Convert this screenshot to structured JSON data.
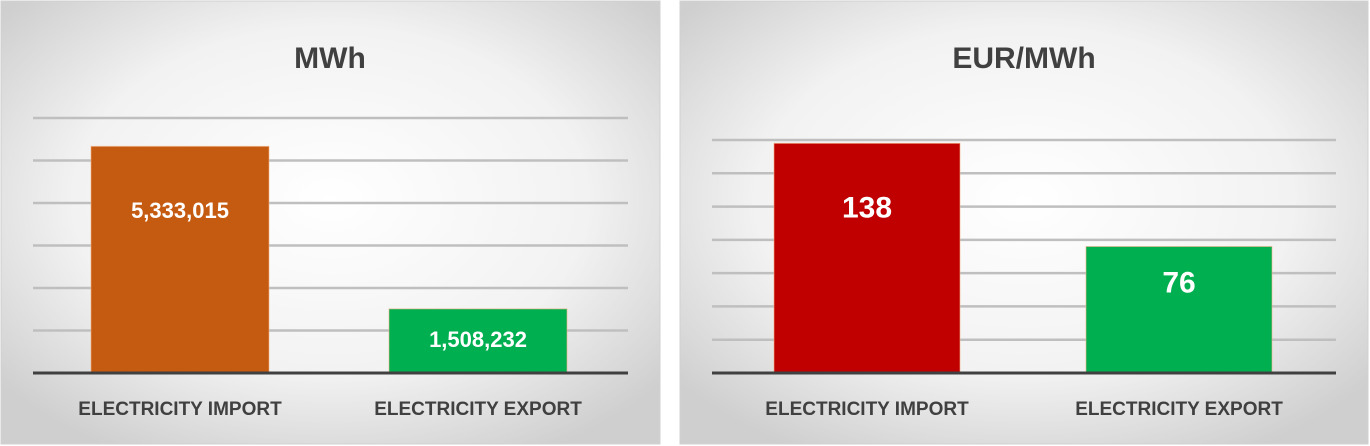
{
  "chart_data": [
    {
      "type": "bar",
      "title": "MWh",
      "categories": [
        "ELECTRICITY IMPORT",
        "ELECTRICITY EXPORT"
      ],
      "values": [
        5333015,
        1508232
      ],
      "value_labels": [
        "5,333,015",
        "1,508,232"
      ],
      "colors": [
        "#c55a11",
        "#00b050"
      ],
      "ylim": [
        0,
        6000000
      ],
      "yticks": [
        0,
        1000000,
        2000000,
        3000000,
        4000000,
        5000000,
        6000000
      ],
      "grid": true
    },
    {
      "type": "bar",
      "title": "EUR/MWh",
      "categories": [
        "ELECTRICITY IMPORT",
        "ELECTRICITY EXPORT"
      ],
      "values": [
        138,
        76
      ],
      "colors": [
        "#c00000",
        "#00b050"
      ],
      "ylim": [
        0,
        140
      ],
      "yticks": [
        0,
        20,
        40,
        60,
        80,
        100,
        120,
        140
      ],
      "grid": true
    }
  ]
}
